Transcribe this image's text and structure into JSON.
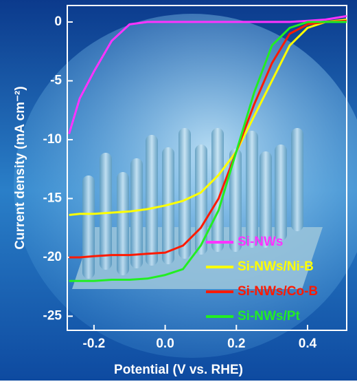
{
  "chart_data": {
    "type": "line",
    "xlabel": "Potential (V vs. RHE)",
    "ylabel": "Current density (mA cm⁻²)",
    "x": [
      -0.27,
      -0.24,
      -0.2,
      -0.15,
      -0.1,
      -0.05,
      0,
      0.05,
      0.1,
      0.15,
      0.2,
      0.25,
      0.3,
      0.35,
      0.4,
      0.45,
      0.51
    ],
    "series": [
      {
        "name": "Si-NWs",
        "color": "#ff33ff",
        "values": [
          -9.5,
          -6.5,
          -4.2,
          -1.6,
          -0.2,
          0,
          0,
          0,
          0,
          0,
          0,
          0,
          0,
          0,
          0.1,
          0.2,
          0.5
        ]
      },
      {
        "name": "Si-NWs/Ni-B",
        "color": "#ffff00",
        "values": [
          -16.4,
          -16.3,
          -16.3,
          -16.2,
          -16.1,
          -15.9,
          -15.6,
          -15.2,
          -14.5,
          -13,
          -11,
          -8,
          -5,
          -2,
          -0.5,
          0,
          0.2
        ]
      },
      {
        "name": "Si-NWs/Co-B",
        "color": "#ff1a00",
        "values": [
          -20,
          -20,
          -19.9,
          -19.8,
          -19.8,
          -19.7,
          -19.6,
          -19,
          -17.5,
          -15,
          -11,
          -7,
          -3.5,
          -1,
          -0.2,
          0,
          0.1
        ]
      },
      {
        "name": "Si-NWs/Pt",
        "color": "#22ee22",
        "values": [
          -22,
          -22,
          -22,
          -21.9,
          -21.9,
          -21.8,
          -21.5,
          -21,
          -19,
          -16,
          -11,
          -6,
          -2,
          -0.5,
          0,
          0,
          0
        ]
      }
    ],
    "xlim": [
      -0.275,
      0.51
    ],
    "ylim": [
      -26.2,
      1.4
    ],
    "xticks": [
      -0.2,
      {
        "value": 0,
        "label": "0.0"
      },
      0.2,
      0.4
    ],
    "yticks": [
      0,
      -5,
      -10,
      -15,
      -20,
      -25
    ],
    "legend": "lower right"
  }
}
